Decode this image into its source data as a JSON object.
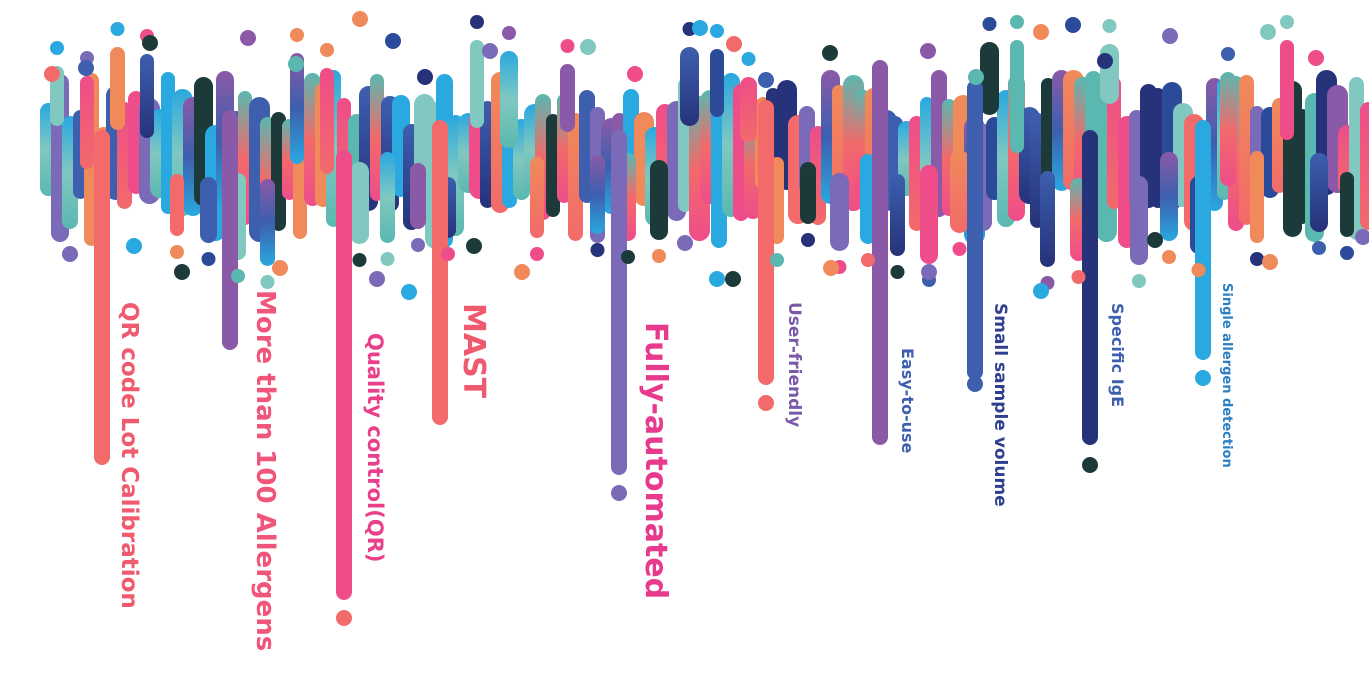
{
  "features": [
    {
      "text": "QR code Lot Calibration",
      "color": "#f05a6e"
    },
    {
      "text": "More than 100 Allergens",
      "color": "#f0557a"
    },
    {
      "text": "Quality control(QR)",
      "color": "#ea3f8a"
    },
    {
      "text": "MAST",
      "color": "#f05a6e"
    },
    {
      "text": "Fully-automated",
      "color": "#e83a8c"
    },
    {
      "text": "User-friendly",
      "color": "#7a5aa8"
    },
    {
      "text": "Easy-to-use",
      "color": "#3d5fae"
    },
    {
      "text": "Small sample volume",
      "color": "#2e3f8f"
    },
    {
      "text": "Specific IgE",
      "color": "#3d5fae"
    },
    {
      "text": "Single allergen detection",
      "color": "#2a7fc4"
    }
  ],
  "palette": [
    "#f26a6a",
    "#f08a5a",
    "#ee4d8a",
    "#8a5aa8",
    "#7a6ab8",
    "#3d5fae",
    "#2b4a9a",
    "#2aa8e0",
    "#5ab8b0",
    "#80c8c0",
    "#1d3a3a",
    "#26327a"
  ]
}
